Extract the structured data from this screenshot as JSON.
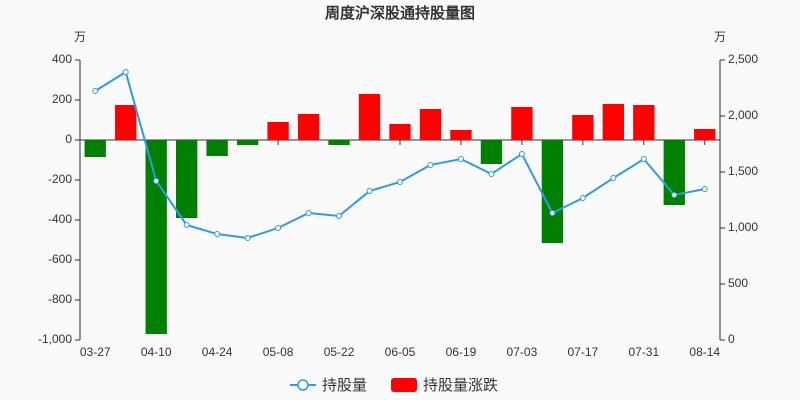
{
  "chart_data": {
    "type": "bar-line",
    "title": "周度沪深股通持股量图",
    "y_unit": "万",
    "y2_unit": "万",
    "categories": [
      "03-27",
      null,
      "04-10",
      null,
      "04-24",
      null,
      "05-08",
      null,
      "05-22",
      null,
      "06-05",
      null,
      "06-19",
      null,
      "07-03",
      null,
      "07-17",
      null,
      "07-31",
      null,
      "08-14"
    ],
    "series": [
      {
        "name": "持股量",
        "type": "line",
        "axis": "y2",
        "color": "#2f9ae8",
        "values": [
          2223,
          2393,
          1420,
          1027,
          946,
          911,
          1000,
          1134,
          1107,
          1330,
          1411,
          1563,
          1616,
          1482,
          1661,
          1134,
          1268,
          1446,
          1616,
          1295,
          1348
        ]
      },
      {
        "name": "持股量涨跌",
        "type": "bar",
        "color": "#ff0000",
        "positive_color": "#ff0000",
        "negative_color": "#008000",
        "values": [
          -85,
          175,
          -970,
          -390,
          -80,
          -25,
          90,
          130,
          -25,
          230,
          80,
          155,
          50,
          -120,
          165,
          -515,
          125,
          180,
          175,
          -325,
          55
        ]
      }
    ],
    "ylim": [
      -1000,
      400
    ],
    "yticks": [
      {
        "value": -1000,
        "label": "-1,000"
      },
      -800,
      -600,
      -400,
      -200,
      0,
      200,
      400
    ],
    "y2lim": [
      0,
      2500
    ],
    "y2ticks": [
      0,
      500,
      {
        "value": 1000,
        "label": "1,000"
      },
      {
        "value": 1500,
        "label": "1,500"
      },
      {
        "value": 2000,
        "label": "2,000"
      },
      {
        "value": 2500,
        "label": "2,500"
      }
    ],
    "grid": false,
    "legend": "bottom"
  }
}
